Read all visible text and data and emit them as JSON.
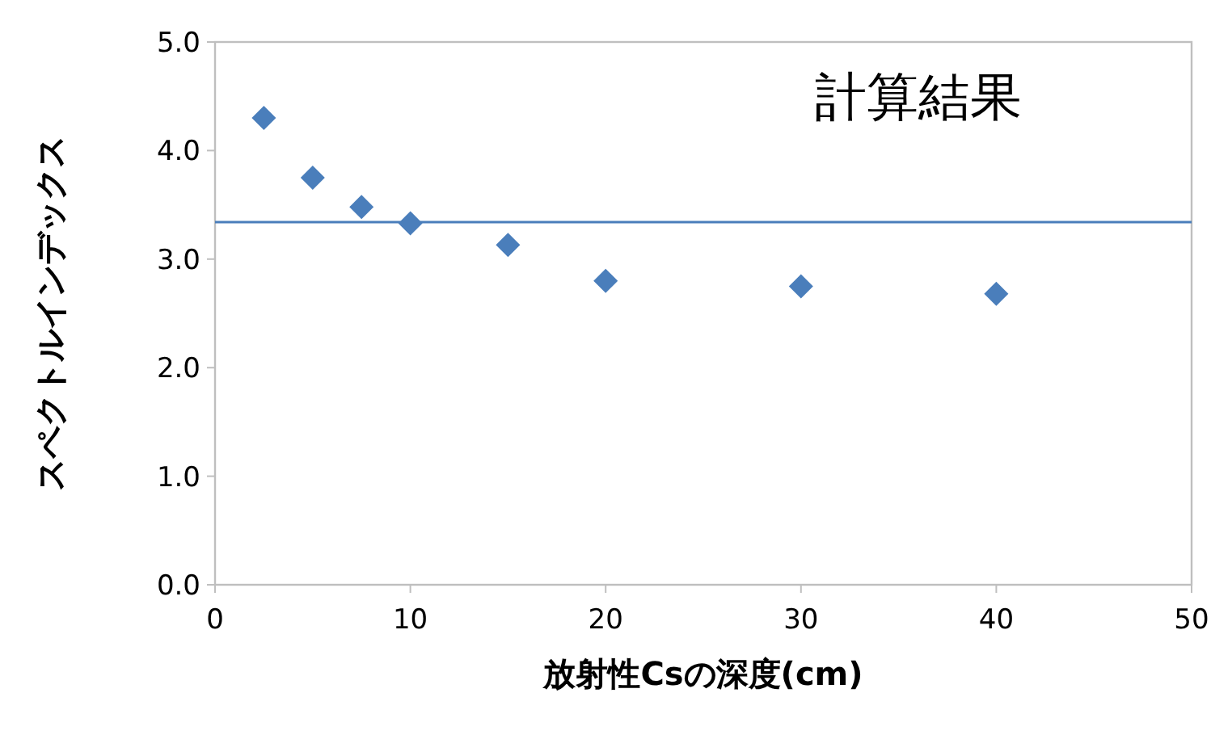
{
  "chart_data": {
    "type": "scatter",
    "xlabel": "放射性Csの深度(cm)",
    "ylabel": "スペクトルインデックス",
    "annotations": [
      "計算結果"
    ],
    "x": [
      2.5,
      5,
      7.5,
      10,
      15,
      20,
      30,
      40
    ],
    "series": [
      {
        "color": "#4a7ebb",
        "values": [
          4.3,
          3.75,
          3.48,
          3.33,
          3.13,
          2.8,
          2.75,
          2.68
        ]
      }
    ],
    "marker": "diamond",
    "xlim": [
      0,
      50
    ],
    "ylim": [
      0,
      5
    ],
    "xticks": [
      0,
      10,
      20,
      30,
      40,
      50
    ],
    "yticks": [
      {
        "value": 0,
        "label": "0.0"
      },
      {
        "value": 1,
        "label": "1.0"
      },
      {
        "value": 2,
        "label": "2.0"
      },
      {
        "value": 3,
        "label": "3.0"
      },
      {
        "value": 4,
        "label": "4.0"
      },
      {
        "value": 5,
        "label": "5.0"
      }
    ],
    "ref_lines": [
      {
        "axis": "y",
        "value": 3.34,
        "color": "#4a7ebb",
        "line_style": "solid"
      }
    ],
    "grid": false
  }
}
